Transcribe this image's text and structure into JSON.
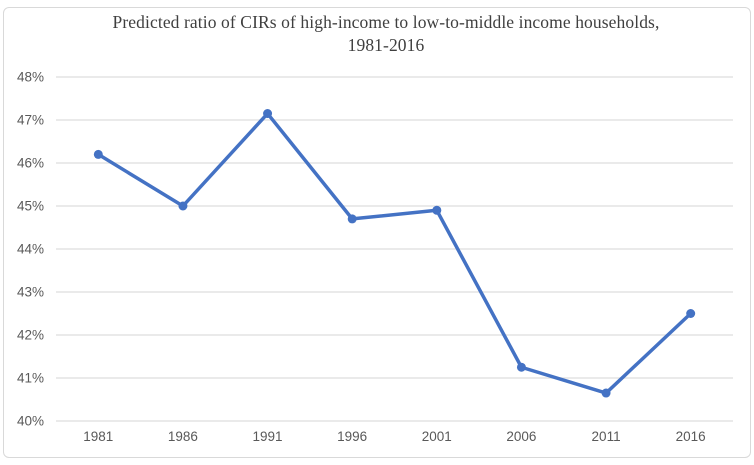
{
  "title": {
    "line1": "Predicted ratio of CIRs of high-income to low-to-middle income households,",
    "line2": "1981-2016"
  },
  "chart_data": {
    "type": "line",
    "title": "Predicted ratio of CIRs of high-income to low-to-middle income households, 1981-2016",
    "categories": [
      "1981",
      "1986",
      "1991",
      "1996",
      "2001",
      "2006",
      "2011",
      "2016"
    ],
    "series": [
      {
        "name": "Predicted ratio of CIRs of high-income to low-to-middle income households",
        "values": [
          46.2,
          45.0,
          47.15,
          44.7,
          44.9,
          41.25,
          40.65,
          42.5
        ]
      }
    ],
    "xlabel": "",
    "ylabel": "",
    "ylim": [
      40,
      48
    ],
    "ytick_step": 1,
    "ytick_labels_top_to_bottom": [
      "48%",
      "47%",
      "46%",
      "45%",
      "44%",
      "43%",
      "42%",
      "41%",
      "40%"
    ],
    "grid": true,
    "legend": false,
    "colors": {
      "line": "#4472C4",
      "marker": "#4472C4",
      "gridline": "#e3e3e3",
      "axis_text": "#595959",
      "title_text": "#3f3f3f",
      "frame_border": "#d9d9d9",
      "background": "#ffffff"
    }
  }
}
